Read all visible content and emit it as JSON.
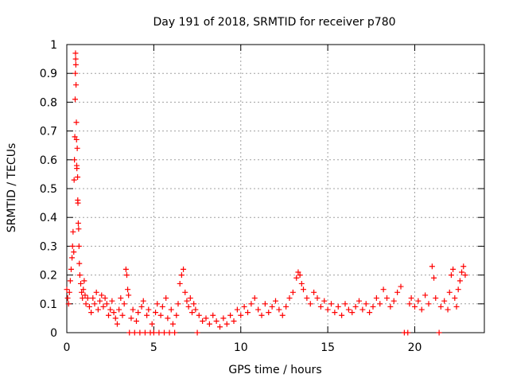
{
  "chart_data": {
    "type": "scatter",
    "title": "Day 191 of 2018, SRMTID for receiver p780",
    "xlabel": "GPS time / hours",
    "ylabel": "SRMTID / TECUs",
    "xlim": [
      0,
      24
    ],
    "ylim": [
      0,
      1
    ],
    "xticks": [
      0,
      5,
      10,
      15,
      20
    ],
    "yticks": [
      0,
      0.1,
      0.2,
      0.3,
      0.4,
      0.5,
      0.6,
      0.7,
      0.8,
      0.9,
      1
    ],
    "grid": true,
    "marker": "+",
    "color": "#ff0000",
    "series": [
      {
        "name": "SRMTID",
        "points": [
          [
            0.0,
            0.15
          ],
          [
            0.05,
            0.12
          ],
          [
            0.1,
            0.1
          ],
          [
            0.15,
            0.14
          ],
          [
            0.2,
            0.18
          ],
          [
            0.25,
            0.22
          ],
          [
            0.3,
            0.26
          ],
          [
            0.33,
            0.3
          ],
          [
            0.36,
            0.35
          ],
          [
            0.4,
            0.28
          ],
          [
            0.42,
            0.53
          ],
          [
            0.44,
            0.6
          ],
          [
            0.46,
            0.68
          ],
          [
            0.48,
            0.81
          ],
          [
            0.49,
            0.9
          ],
          [
            0.5,
            0.97
          ],
          [
            0.51,
            0.95
          ],
          [
            0.52,
            0.93
          ],
          [
            0.53,
            0.86
          ],
          [
            0.55,
            0.73
          ],
          [
            0.56,
            0.67
          ],
          [
            0.57,
            0.58
          ],
          [
            0.58,
            0.57
          ],
          [
            0.6,
            0.64
          ],
          [
            0.62,
            0.54
          ],
          [
            0.63,
            0.46
          ],
          [
            0.64,
            0.45
          ],
          [
            0.66,
            0.38
          ],
          [
            0.68,
            0.36
          ],
          [
            0.7,
            0.3
          ],
          [
            0.72,
            0.24
          ],
          [
            0.75,
            0.2
          ],
          [
            0.8,
            0.17
          ],
          [
            0.85,
            0.14
          ],
          [
            0.9,
            0.12
          ],
          [
            0.95,
            0.15
          ],
          [
            1.0,
            0.18
          ],
          [
            1.05,
            0.13
          ],
          [
            1.1,
            0.1
          ],
          [
            1.2,
            0.12
          ],
          [
            1.3,
            0.09
          ],
          [
            1.4,
            0.07
          ],
          [
            1.5,
            0.12
          ],
          [
            1.6,
            0.1
          ],
          [
            1.7,
            0.14
          ],
          [
            1.8,
            0.08
          ],
          [
            1.9,
            0.11
          ],
          [
            2.0,
            0.13
          ],
          [
            2.1,
            0.09
          ],
          [
            2.2,
            0.12
          ],
          [
            2.3,
            0.1
          ],
          [
            2.4,
            0.06
          ],
          [
            2.5,
            0.08
          ],
          [
            2.6,
            0.11
          ],
          [
            2.7,
            0.07
          ],
          [
            2.8,
            0.05
          ],
          [
            2.9,
            0.03
          ],
          [
            3.0,
            0.08
          ],
          [
            3.1,
            0.12
          ],
          [
            3.2,
            0.06
          ],
          [
            3.3,
            0.1
          ],
          [
            3.4,
            0.22
          ],
          [
            3.45,
            0.2
          ],
          [
            3.5,
            0.15
          ],
          [
            3.55,
            0.13
          ],
          [
            3.6,
            0.0
          ],
          [
            3.7,
            0.05
          ],
          [
            3.8,
            0.08
          ],
          [
            3.9,
            0.0
          ],
          [
            4.0,
            0.04
          ],
          [
            4.1,
            0.07
          ],
          [
            4.2,
            0.0
          ],
          [
            4.3,
            0.09
          ],
          [
            4.4,
            0.11
          ],
          [
            4.5,
            0.0
          ],
          [
            4.6,
            0.06
          ],
          [
            4.7,
            0.08
          ],
          [
            4.8,
            0.0
          ],
          [
            4.9,
            0.03
          ],
          [
            5.0,
            0.0
          ],
          [
            5.1,
            0.07
          ],
          [
            5.2,
            0.1
          ],
          [
            5.3,
            0.0
          ],
          [
            5.4,
            0.06
          ],
          [
            5.5,
            0.09
          ],
          [
            5.6,
            0.0
          ],
          [
            5.7,
            0.12
          ],
          [
            5.8,
            0.05
          ],
          [
            5.9,
            0.0
          ],
          [
            6.0,
            0.08
          ],
          [
            6.1,
            0.03
          ],
          [
            6.2,
            0.0
          ],
          [
            6.3,
            0.06
          ],
          [
            6.4,
            0.1
          ],
          [
            6.5,
            0.17
          ],
          [
            6.6,
            0.2
          ],
          [
            6.7,
            0.22
          ],
          [
            6.8,
            0.14
          ],
          [
            6.9,
            0.11
          ],
          [
            7.0,
            0.09
          ],
          [
            7.1,
            0.12
          ],
          [
            7.2,
            0.07
          ],
          [
            7.3,
            0.1
          ],
          [
            7.4,
            0.08
          ],
          [
            7.5,
            0.0
          ],
          [
            7.6,
            0.06
          ],
          [
            7.8,
            0.04
          ],
          [
            8.0,
            0.05
          ],
          [
            8.2,
            0.03
          ],
          [
            8.4,
            0.06
          ],
          [
            8.6,
            0.04
          ],
          [
            8.8,
            0.02
          ],
          [
            9.0,
            0.05
          ],
          [
            9.2,
            0.03
          ],
          [
            9.4,
            0.06
          ],
          [
            9.6,
            0.04
          ],
          [
            9.8,
            0.08
          ],
          [
            10.0,
            0.06
          ],
          [
            10.2,
            0.09
          ],
          [
            10.4,
            0.07
          ],
          [
            10.6,
            0.1
          ],
          [
            10.8,
            0.12
          ],
          [
            11.0,
            0.08
          ],
          [
            11.2,
            0.06
          ],
          [
            11.4,
            0.1
          ],
          [
            11.6,
            0.07
          ],
          [
            11.8,
            0.09
          ],
          [
            12.0,
            0.11
          ],
          [
            12.2,
            0.08
          ],
          [
            12.4,
            0.06
          ],
          [
            12.6,
            0.09
          ],
          [
            12.8,
            0.12
          ],
          [
            13.0,
            0.14
          ],
          [
            13.2,
            0.19
          ],
          [
            13.3,
            0.21
          ],
          [
            13.4,
            0.2
          ],
          [
            13.5,
            0.17
          ],
          [
            13.6,
            0.15
          ],
          [
            13.8,
            0.12
          ],
          [
            14.0,
            0.1
          ],
          [
            14.2,
            0.14
          ],
          [
            14.4,
            0.12
          ],
          [
            14.6,
            0.09
          ],
          [
            14.8,
            0.11
          ],
          [
            15.0,
            0.08
          ],
          [
            15.2,
            0.1
          ],
          [
            15.4,
            0.07
          ],
          [
            15.6,
            0.09
          ],
          [
            15.8,
            0.06
          ],
          [
            16.0,
            0.1
          ],
          [
            16.2,
            0.08
          ],
          [
            16.4,
            0.07
          ],
          [
            16.6,
            0.09
          ],
          [
            16.8,
            0.11
          ],
          [
            17.0,
            0.08
          ],
          [
            17.2,
            0.1
          ],
          [
            17.4,
            0.07
          ],
          [
            17.6,
            0.09
          ],
          [
            17.8,
            0.12
          ],
          [
            18.0,
            0.1
          ],
          [
            18.2,
            0.15
          ],
          [
            18.4,
            0.12
          ],
          [
            18.6,
            0.09
          ],
          [
            18.8,
            0.11
          ],
          [
            19.0,
            0.14
          ],
          [
            19.2,
            0.16
          ],
          [
            19.4,
            0.0
          ],
          [
            19.6,
            0.0
          ],
          [
            19.7,
            0.1
          ],
          [
            19.8,
            0.12
          ],
          [
            20.0,
            0.09
          ],
          [
            20.2,
            0.11
          ],
          [
            20.4,
            0.08
          ],
          [
            20.6,
            0.13
          ],
          [
            20.8,
            0.1
          ],
          [
            21.0,
            0.23
          ],
          [
            21.1,
            0.19
          ],
          [
            21.2,
            0.12
          ],
          [
            21.4,
            0.0
          ],
          [
            21.5,
            0.09
          ],
          [
            21.7,
            0.11
          ],
          [
            21.9,
            0.08
          ],
          [
            22.0,
            0.14
          ],
          [
            22.1,
            0.2
          ],
          [
            22.2,
            0.22
          ],
          [
            22.3,
            0.12
          ],
          [
            22.4,
            0.09
          ],
          [
            22.5,
            0.15
          ],
          [
            22.6,
            0.18
          ],
          [
            22.7,
            0.21
          ],
          [
            22.8,
            0.23
          ],
          [
            22.9,
            0.2
          ]
        ]
      }
    ]
  }
}
